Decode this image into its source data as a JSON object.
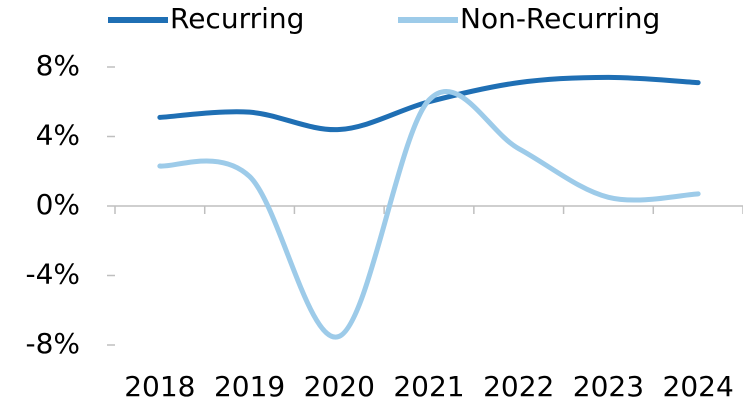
{
  "chart_data": {
    "type": "line",
    "categories": [
      "2018",
      "2019",
      "2020",
      "2021",
      "2022",
      "2023",
      "2024"
    ],
    "series": [
      {
        "name": "Recurring",
        "color": "#1f6fb4",
        "values": [
          5.1,
          5.4,
          4.4,
          6.0,
          7.1,
          7.4,
          7.1
        ]
      },
      {
        "name": "Non-Recurring",
        "color": "#9dcbe9",
        "values": [
          2.3,
          1.7,
          -7.5,
          6.1,
          3.3,
          0.5,
          0.7
        ]
      }
    ],
    "ylim": [
      -8,
      8
    ],
    "yticks": [
      {
        "value": -8,
        "label": "-8%"
      },
      {
        "value": -4,
        "label": "-4%"
      },
      {
        "value": 0,
        "label": "0%"
      },
      {
        "value": 4,
        "label": "4%"
      },
      {
        "value": 8,
        "label": "8%"
      }
    ],
    "grid": false,
    "legend": "top"
  }
}
